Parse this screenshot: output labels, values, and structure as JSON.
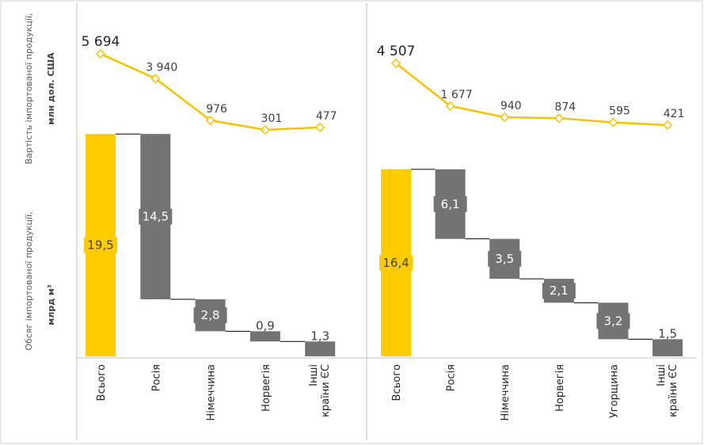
{
  "chart_data": [
    {
      "type": "waterfall",
      "ylabel_top": "Вартість імпортованої продукції,",
      "ylabel_top_unit": "млн дол. США",
      "ylabel_bottom": "Обсяг імпортованої продукції,",
      "ylabel_bottom_unit": "млрд м³",
      "categories": [
        "Всього",
        "Росія",
        "Німеччина",
        "Норвегія",
        "Інші країни ЄС"
      ],
      "values": [
        19.5,
        14.5,
        2.8,
        0.9,
        1.3
      ],
      "value_labels": [
        "19,5",
        "14,5",
        "2,8",
        "0,9",
        "1,3"
      ],
      "line_values": [
        5694,
        3940,
        976,
        301,
        477
      ],
      "line_value_labels": [
        "5 694",
        "3 940",
        "976",
        "301",
        "477"
      ],
      "total_color": "#ffcc00",
      "bar_color": "#737373",
      "line_color": "#f5c400"
    },
    {
      "type": "waterfall",
      "categories": [
        "Всього",
        "Росія",
        "Німеччина",
        "Норвегія",
        "Угорщина",
        "Інші країни ЄС"
      ],
      "values": [
        16.4,
        6.1,
        3.5,
        2.1,
        3.2,
        1.5
      ],
      "value_labels": [
        "16,4",
        "6,1",
        "3,5",
        "2,1",
        "3,2",
        "1,5"
      ],
      "line_values": [
        4507,
        1677,
        940,
        874,
        595,
        421
      ],
      "line_value_labels": [
        "4 507",
        "1 677",
        "940",
        "874",
        "595",
        "421"
      ],
      "total_color": "#ffcc00",
      "bar_color": "#737373",
      "line_color": "#f5c400"
    }
  ]
}
